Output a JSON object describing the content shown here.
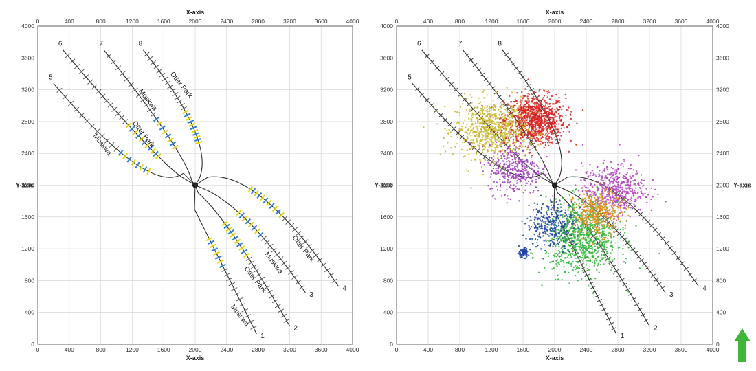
{
  "chart_data": [
    {
      "id": "left",
      "type": "line",
      "title": "",
      "xlabel": "X-axis",
      "ylabel": "Y-axis",
      "xlim": [
        0,
        4000
      ],
      "ylim": [
        0,
        4000
      ],
      "grid": true,
      "x_ticks": [
        "0",
        "400",
        "800",
        "1200",
        "1600",
        "2000",
        "2400",
        "2800",
        "3200",
        "3600",
        "4000"
      ],
      "y_ticks": [
        "0",
        "400",
        "800",
        "1200",
        "1600",
        "2000",
        "2400",
        "2800",
        "3200",
        "3600",
        "4000"
      ],
      "wells": [
        {
          "label": "1",
          "start": [
            1990,
            1700
          ],
          "bend": [
            2150,
            1380
          ],
          "end": [
            2780,
            130
          ],
          "formation": "Muskwa"
        },
        {
          "label": "2",
          "start": [
            2040,
            1900
          ],
          "bend": [
            2400,
            1600
          ],
          "end": [
            3200,
            230
          ],
          "formation": "Otter Park"
        },
        {
          "label": "3",
          "start": [
            2120,
            1950
          ],
          "bend": [
            2650,
            1720
          ],
          "end": [
            3400,
            650
          ],
          "formation": "Muskwa"
        },
        {
          "label": "4",
          "start": [
            2160,
            2100
          ],
          "bend": [
            2800,
            2200
          ],
          "end": [
            3820,
            730
          ],
          "formation": "Otter Park"
        },
        {
          "label": "5",
          "start": [
            1850,
            2150
          ],
          "bend": [
            1420,
            1850
          ],
          "end": [
            200,
            3280
          ],
          "formation": "Muskwa"
        },
        {
          "label": "6",
          "start": [
            1900,
            2060
          ],
          "bend": [
            1600,
            2200
          ],
          "end": [
            320,
            3700
          ],
          "formation": "Otter Park"
        },
        {
          "label": "7",
          "start": [
            1960,
            2050
          ],
          "bend": [
            1850,
            2450
          ],
          "end": [
            840,
            3700
          ],
          "formation": "Muskwa"
        },
        {
          "label": "8",
          "start": [
            2050,
            2080
          ],
          "bend": [
            2260,
            2550
          ],
          "end": [
            1340,
            3700
          ],
          "formation": "Otter Park"
        }
      ],
      "formation_labels": [
        {
          "text": "Otter Park",
          "x": 1680,
          "y": 3400,
          "angle": -52
        },
        {
          "text": "Muskwa",
          "x": 1280,
          "y": 3180,
          "angle": -52
        },
        {
          "text": "Otter Park",
          "x": 1200,
          "y": 2780,
          "angle": -52
        },
        {
          "text": "Muskwa",
          "x": 700,
          "y": 2620,
          "angle": -52
        },
        {
          "text": "Otter Park",
          "x": 3230,
          "y": 1340,
          "angle": -52
        },
        {
          "text": "Muskwa",
          "x": 2880,
          "y": 1130,
          "angle": -52
        },
        {
          "text": "Otter Park",
          "x": 2620,
          "y": 950,
          "angle": -52
        },
        {
          "text": "Muskwa",
          "x": 2450,
          "y": 470,
          "angle": -52
        }
      ],
      "stage_colors": {
        "gray": "#5a5a5a",
        "yellow": "#e3d400",
        "blue": "#2d7fcf"
      }
    },
    {
      "id": "right",
      "type": "scatter",
      "title": "",
      "xlabel": "X-axis",
      "ylabel": "Y-axis",
      "xlim": [
        0,
        4000
      ],
      "ylim": [
        0,
        4000
      ],
      "grid": true,
      "x_ticks": [
        "0",
        "400",
        "800",
        "1200",
        "1600",
        "2000",
        "2400",
        "2800",
        "3200",
        "3600",
        "4000"
      ],
      "y_ticks": [
        "0",
        "400",
        "800",
        "1200",
        "1600",
        "2000",
        "2400",
        "2800",
        "3200",
        "3600",
        "4000"
      ],
      "well_labels": [
        "1",
        "2",
        "3",
        "4",
        "5",
        "6",
        "7",
        "8"
      ],
      "event_clusters": [
        {
          "name": "red",
          "color": "#d81d1d",
          "center": [
            1750,
            2820
          ],
          "spread": [
            320,
            260
          ],
          "count": 900
        },
        {
          "name": "yellow",
          "color": "#c9b92a",
          "center": [
            1200,
            2700
          ],
          "spread": [
            380,
            300
          ],
          "count": 700
        },
        {
          "name": "purple",
          "color": "#9b3bbd",
          "center": [
            1500,
            2200
          ],
          "spread": [
            280,
            260
          ],
          "count": 350
        },
        {
          "name": "magenta",
          "color": "#b43fc2",
          "center": [
            2750,
            1950
          ],
          "spread": [
            330,
            260
          ],
          "count": 500
        },
        {
          "name": "green",
          "color": "#2fb737",
          "center": [
            2350,
            1350
          ],
          "spread": [
            380,
            380
          ],
          "count": 900
        },
        {
          "name": "orange",
          "color": "#e38a12",
          "center": [
            2550,
            1650
          ],
          "spread": [
            250,
            230
          ],
          "count": 400
        },
        {
          "name": "navy",
          "color": "#1f3fa8",
          "center": [
            1950,
            1500
          ],
          "spread": [
            250,
            260
          ],
          "count": 300
        },
        {
          "name": "blue",
          "color": "#1f3fa8",
          "center": [
            1600,
            1150
          ],
          "spread": [
            60,
            50
          ],
          "count": 70
        }
      ]
    }
  ],
  "north_arrow": {
    "color": "#3fb53a",
    "icon": "north-arrow-icon"
  }
}
